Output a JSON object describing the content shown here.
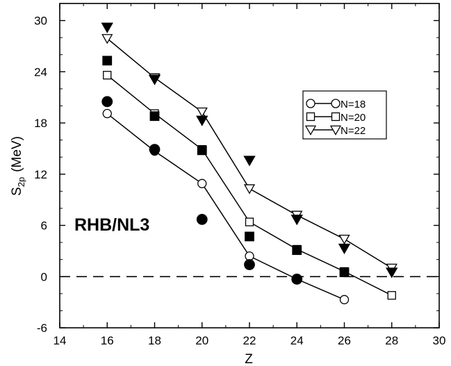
{
  "chart_data": {
    "type": "scatter",
    "annotation": "RHB/NL3",
    "xlabel": "Z",
    "ylabel_main": "S",
    "ylabel_sub": "2p",
    "ylabel_unit": "(MeV)",
    "xlim": [
      14,
      30
    ],
    "ylim": [
      -6,
      32
    ],
    "x_ticks": [
      14,
      16,
      18,
      20,
      22,
      24,
      26,
      28,
      30
    ],
    "y_ticks": [
      -6,
      0,
      6,
      12,
      18,
      24,
      30
    ],
    "zero_line": {
      "y": 0,
      "style": "dashed"
    },
    "legend_position": "top-right",
    "series": [
      {
        "name": "N=18",
        "marker": "circle",
        "kind": "calculated",
        "x": [
          16,
          18,
          20,
          22,
          24,
          26
        ],
        "y": [
          19.1,
          14.7,
          10.9,
          2.4,
          -0.3,
          -2.7
        ]
      },
      {
        "name": "N=20",
        "marker": "square",
        "kind": "calculated",
        "x": [
          16,
          18,
          20,
          22,
          24,
          26,
          28
        ],
        "y": [
          23.6,
          19.1,
          14.9,
          6.4,
          3.2,
          0.6,
          -2.2
        ]
      },
      {
        "name": "N=22",
        "marker": "triangle-down",
        "kind": "calculated",
        "x": [
          16,
          18,
          20,
          22,
          24,
          26,
          28
        ],
        "y": [
          27.9,
          23.3,
          19.3,
          10.3,
          7.2,
          4.4,
          1.0
        ]
      },
      {
        "marker": "circle",
        "kind": "experimental",
        "x": [
          16,
          18,
          20,
          22,
          24
        ],
        "y": [
          20.5,
          14.9,
          6.7,
          1.4,
          -0.3
        ]
      },
      {
        "marker": "square",
        "kind": "experimental",
        "x": [
          16,
          18,
          20,
          22,
          24,
          26
        ],
        "y": [
          25.3,
          18.8,
          14.8,
          4.7,
          3.1,
          0.5
        ]
      },
      {
        "marker": "triangle-down",
        "kind": "experimental",
        "x": [
          16,
          18,
          20,
          22,
          24,
          26,
          28
        ],
        "y": [
          29.2,
          23.1,
          18.3,
          13.6,
          6.7,
          3.3,
          0.5
        ]
      }
    ]
  }
}
